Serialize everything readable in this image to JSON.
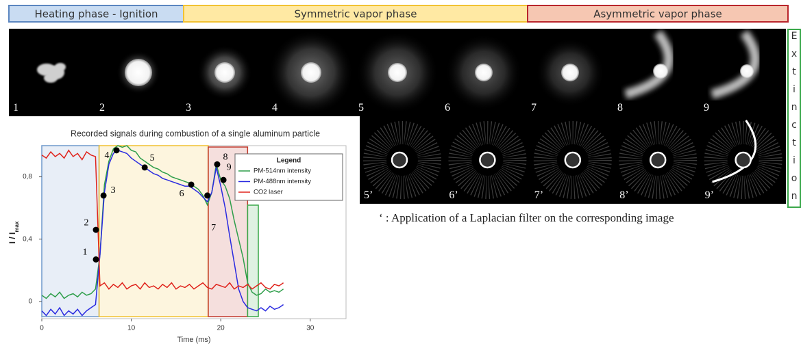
{
  "phases": [
    "Heating phase - Ignition",
    "Symmetric vapor phase",
    "Asymmetric vapor phase"
  ],
  "extinction_label": "Extinction",
  "frames_top": [
    "1",
    "2",
    "3",
    "4",
    "5",
    "6",
    "7",
    "8",
    "9"
  ],
  "frames_filtered": [
    "5’",
    "6’",
    "7’",
    "8’",
    "9’"
  ],
  "note": "‘ : Application of a Laplacian filter on the corresponding image",
  "chart_data": {
    "type": "line",
    "title": "Recorded signals during combustion of a single aluminum particle",
    "xlabel": "Time (ms)",
    "ylabel": "I / I",
    "ylabel_sub": "max",
    "xlim": [
      0,
      34
    ],
    "ylim": [
      -0.11,
      1.0
    ],
    "xticks": [
      0,
      10,
      20,
      30
    ],
    "yticks": [
      0,
      {
        "value": 0.4,
        "label": "0,4"
      },
      {
        "value": 0.8,
        "label": "0,8"
      }
    ],
    "legend_title": "Legend",
    "legend": "upper right",
    "x": [
      0,
      0.5,
      1,
      1.5,
      2,
      2.5,
      3,
      3.5,
      4,
      4.5,
      5,
      5.5,
      6,
      6.5,
      7,
      7.5,
      8,
      8.5,
      9,
      9.5,
      10,
      10.5,
      11,
      11.5,
      12,
      12.5,
      13,
      13.5,
      14,
      14.5,
      15,
      15.5,
      16,
      16.5,
      17,
      17.5,
      18,
      18.5,
      19,
      19.5,
      20,
      20.5,
      21,
      21.5,
      22,
      22.5,
      23,
      23.5,
      24,
      24.5,
      25,
      25.5,
      26,
      26.5,
      27
    ],
    "series": [
      {
        "name": "PM-514nm intensity",
        "color": "#2e9e4a",
        "values": [
          0.04,
          0.02,
          0.05,
          0.03,
          0.06,
          0.02,
          0.04,
          0.05,
          0.03,
          0.06,
          0.04,
          0.05,
          0.08,
          0.3,
          0.75,
          0.9,
          0.98,
          1.0,
          0.99,
          1.0,
          0.97,
          0.96,
          0.92,
          0.9,
          0.88,
          0.86,
          0.85,
          0.83,
          0.82,
          0.8,
          0.79,
          0.78,
          0.77,
          0.76,
          0.74,
          0.72,
          0.68,
          0.62,
          0.7,
          0.88,
          0.78,
          0.74,
          0.66,
          0.52,
          0.4,
          0.28,
          0.12,
          0.06,
          0.04,
          0.05,
          0.08,
          0.06,
          0.07,
          0.06,
          0.08
        ]
      },
      {
        "name": "PM-488nm intensity",
        "color": "#2a2ae0",
        "values": [
          -0.06,
          -0.09,
          -0.05,
          -0.08,
          -0.04,
          -0.09,
          -0.06,
          -0.08,
          -0.05,
          -0.09,
          -0.06,
          -0.04,
          -0.02,
          0.3,
          0.7,
          0.88,
          0.95,
          0.97,
          0.96,
          0.95,
          0.92,
          0.9,
          0.88,
          0.86,
          0.84,
          0.82,
          0.81,
          0.79,
          0.78,
          0.77,
          0.76,
          0.75,
          0.74,
          0.74,
          0.72,
          0.7,
          0.67,
          0.64,
          0.7,
          0.86,
          0.74,
          0.6,
          0.42,
          0.25,
          0.08,
          0,
          -0.04,
          -0.05,
          -0.06,
          -0.04,
          -0.06,
          -0.03,
          -0.05,
          -0.04,
          -0.02
        ]
      },
      {
        "name": "CO2 laser",
        "color": "#e0231c",
        "values": [
          0.94,
          0.92,
          0.96,
          0.93,
          0.95,
          0.92,
          0.97,
          0.93,
          0.95,
          0.91,
          0.96,
          0.94,
          0.93,
          0.1,
          0.12,
          0.08,
          0.11,
          0.09,
          0.12,
          0.08,
          0.1,
          0.11,
          0.08,
          0.12,
          0.09,
          0.1,
          0.08,
          0.11,
          0.09,
          0.12,
          0.08,
          0.1,
          0.09,
          0.11,
          0.08,
          0.1,
          0.12,
          0.09,
          0.08,
          0.11,
          0.1,
          0.09,
          0.12,
          0.08,
          0.1,
          0.09,
          0.11,
          0.08,
          0.1,
          0.12,
          0.09,
          0.08,
          0.11,
          0.1,
          0.12
        ]
      }
    ],
    "regions": [
      {
        "start": 0,
        "end": 6.4,
        "color": "#6f98cc"
      },
      {
        "start": 6.4,
        "end": 18.6,
        "color": "#f0c030"
      },
      {
        "start": 18.6,
        "end": 23.0,
        "color": "#c0392b"
      },
      {
        "start": 23.0,
        "end": 24.2,
        "color": "#3aa84a"
      }
    ],
    "markers": {
      "labels": [
        "1",
        "2",
        "3",
        "4",
        "5",
        "6",
        "7",
        "8",
        "9"
      ],
      "x": [
        6.05,
        6.05,
        6.9,
        8.35,
        11.5,
        16.7,
        18.5,
        19.6,
        20.3
      ],
      "y": [
        0.27,
        0.46,
        0.68,
        0.97,
        0.86,
        0.75,
        0.68,
        0.88,
        0.78
      ]
    }
  }
}
